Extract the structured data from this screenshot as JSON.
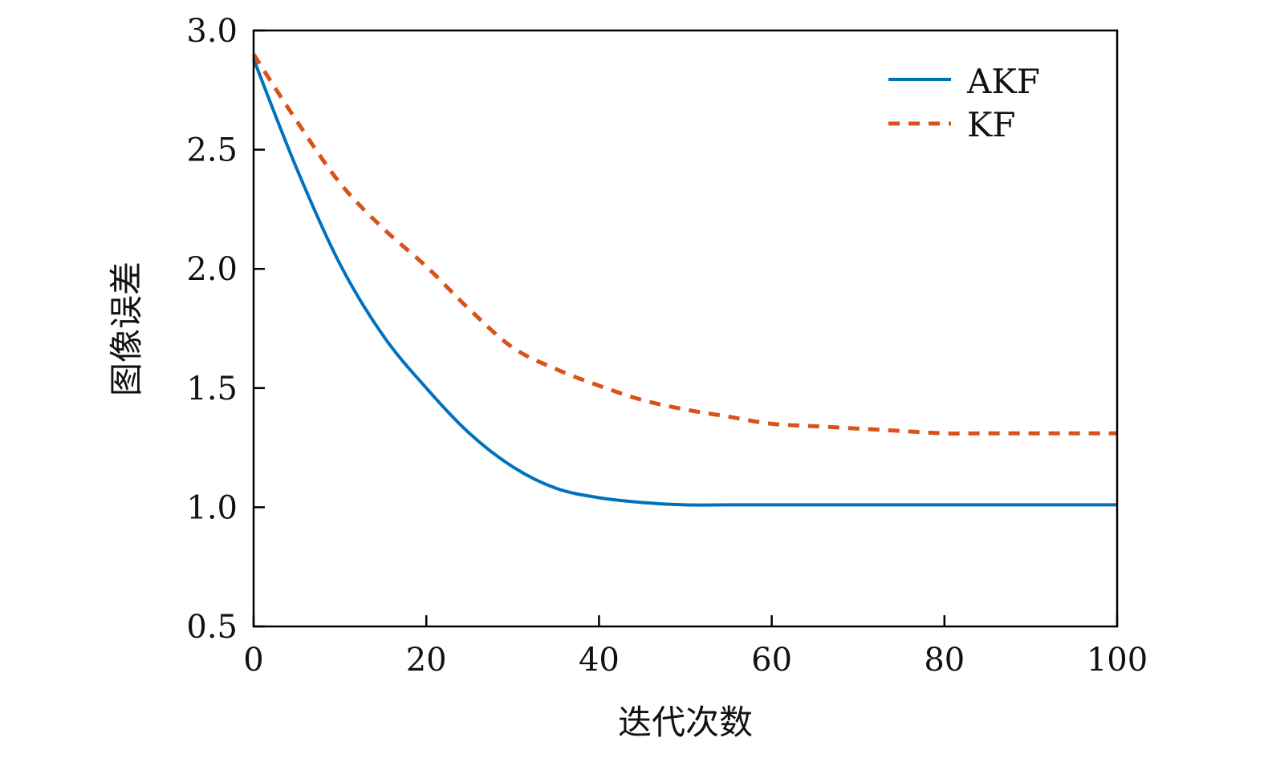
{
  "chart_data": {
    "type": "line",
    "title": "",
    "xlabel": "迭代次数",
    "ylabel": "图像误差",
    "xlim": [
      0,
      100
    ],
    "ylim": [
      0.5,
      3.0
    ],
    "xticks": [
      "0",
      "20",
      "40",
      "60",
      "80",
      "100"
    ],
    "yticks": [
      "0.5",
      "1.0",
      "1.5",
      "2.0",
      "2.5",
      "3.0"
    ],
    "grid": false,
    "legend_position": "top-right",
    "x": [
      0,
      5,
      10,
      15,
      20,
      25,
      30,
      35,
      40,
      45,
      50,
      55,
      60,
      65,
      70,
      75,
      80,
      85,
      90,
      95,
      100
    ],
    "series": [
      {
        "name": "AKF",
        "style": "solid",
        "color": "#0072BD",
        "values": [
          2.88,
          2.42,
          2.02,
          1.72,
          1.5,
          1.31,
          1.17,
          1.08,
          1.04,
          1.02,
          1.01,
          1.01,
          1.01,
          1.01,
          1.01,
          1.01,
          1.01,
          1.01,
          1.01,
          1.01,
          1.01
        ]
      },
      {
        "name": "KF",
        "style": "dashed",
        "color": "#D95319",
        "values": [
          2.9,
          2.62,
          2.36,
          2.17,
          2.01,
          1.83,
          1.67,
          1.58,
          1.51,
          1.45,
          1.41,
          1.38,
          1.35,
          1.34,
          1.33,
          1.32,
          1.31,
          1.31,
          1.31,
          1.31,
          1.31
        ]
      }
    ]
  }
}
